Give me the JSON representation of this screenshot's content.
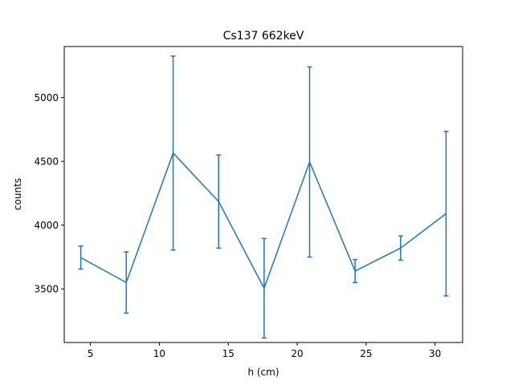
{
  "chart_data": {
    "type": "line",
    "title": "Cs137 662keV",
    "xlabel": "h (cm)",
    "ylabel": "counts",
    "xlim": [
      3.1,
      32.0
    ],
    "ylim": [
      3080,
      5400
    ],
    "xticks": [
      5,
      10,
      15,
      20,
      25,
      30
    ],
    "yticks": [
      3500,
      4000,
      4500,
      5000
    ],
    "grid": false,
    "color": "#1f77b4",
    "series": [
      {
        "x": [
          4.3,
          7.6,
          11.0,
          14.3,
          17.6,
          20.9,
          24.2,
          27.5,
          30.8
        ],
        "y": [
          3745,
          3550,
          4565,
          4185,
          3505,
          4495,
          3640,
          3820,
          4090
        ],
        "yerr": [
          90,
          240,
          760,
          365,
          390,
          745,
          90,
          95,
          645
        ]
      }
    ]
  }
}
